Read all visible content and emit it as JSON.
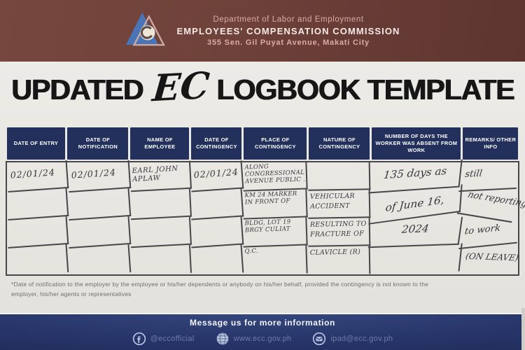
{
  "header": {
    "dept_line": "Department of Labor and Employment",
    "org_line": "EMPLOYEES' COMPENSATION COMMISSION",
    "address_line": "355 Sen. Gil Puyat Avenue, Makati City"
  },
  "title": {
    "pre": "UPDATED",
    "script": "EC",
    "post": "LOGBOOK TEMPLATE"
  },
  "table": {
    "columns": [
      "DATE OF ENTRY",
      "DATE OF NOTIFICATION",
      "NAME OF EMPLOYEE",
      "DATE OF CONTINGENCY",
      "PLACE OF CONTINGENCY",
      "NATURE OF CONTINGENCY",
      "NUMBER OF DAYS THE WORKER WAS ABSENT FROM WORK",
      "REMARKS/ OTHER INFO"
    ],
    "rows": [
      [
        "02/01/24",
        "02/01/24",
        "EARL JOHN\nAPLAW",
        "02/01/24",
        "ALONG\nCONGRESSIONAL\nAVENUE PUBLIC .",
        "",
        "135 days as",
        "still"
      ],
      [
        "",
        "",
        "",
        "",
        "KM 24 MARKER\nIN FRONT OF",
        "VEHICULAR\nACCIDENT",
        "of June 16,",
        "not reporting"
      ],
      [
        "",
        "",
        "",
        "",
        "BLDG, LOT 19\nBRGY CULIAT",
        "RESULTING TO\nFRACTURE OF",
        "2024",
        "to work"
      ],
      [
        "",
        "",
        "",
        "",
        "Q.C.",
        "CLAVICLE (R)",
        "",
        "(ON LEAVE)"
      ]
    ]
  },
  "footnote": {
    "text": "*Date of notification to the employer by the employee or his/her dependents or anybody on his/her behalf, provided the contingency is not known to the\nemployer, his/her agents or representatives"
  },
  "footer": {
    "heading": "Message us for more information",
    "contacts": [
      {
        "icon": "facebook-icon",
        "label": "@eccofficial"
      },
      {
        "icon": "globe-icon",
        "label": "www.ecc.gov.ph"
      },
      {
        "icon": "email-icon",
        "label": "ipad@ecc.gov.ph"
      }
    ]
  },
  "colors": {
    "header_maroon": "#6e413a",
    "table_header_navy": "#22305b",
    "footer_navy": "#27356a",
    "handwriting_ink": "#35363d"
  }
}
